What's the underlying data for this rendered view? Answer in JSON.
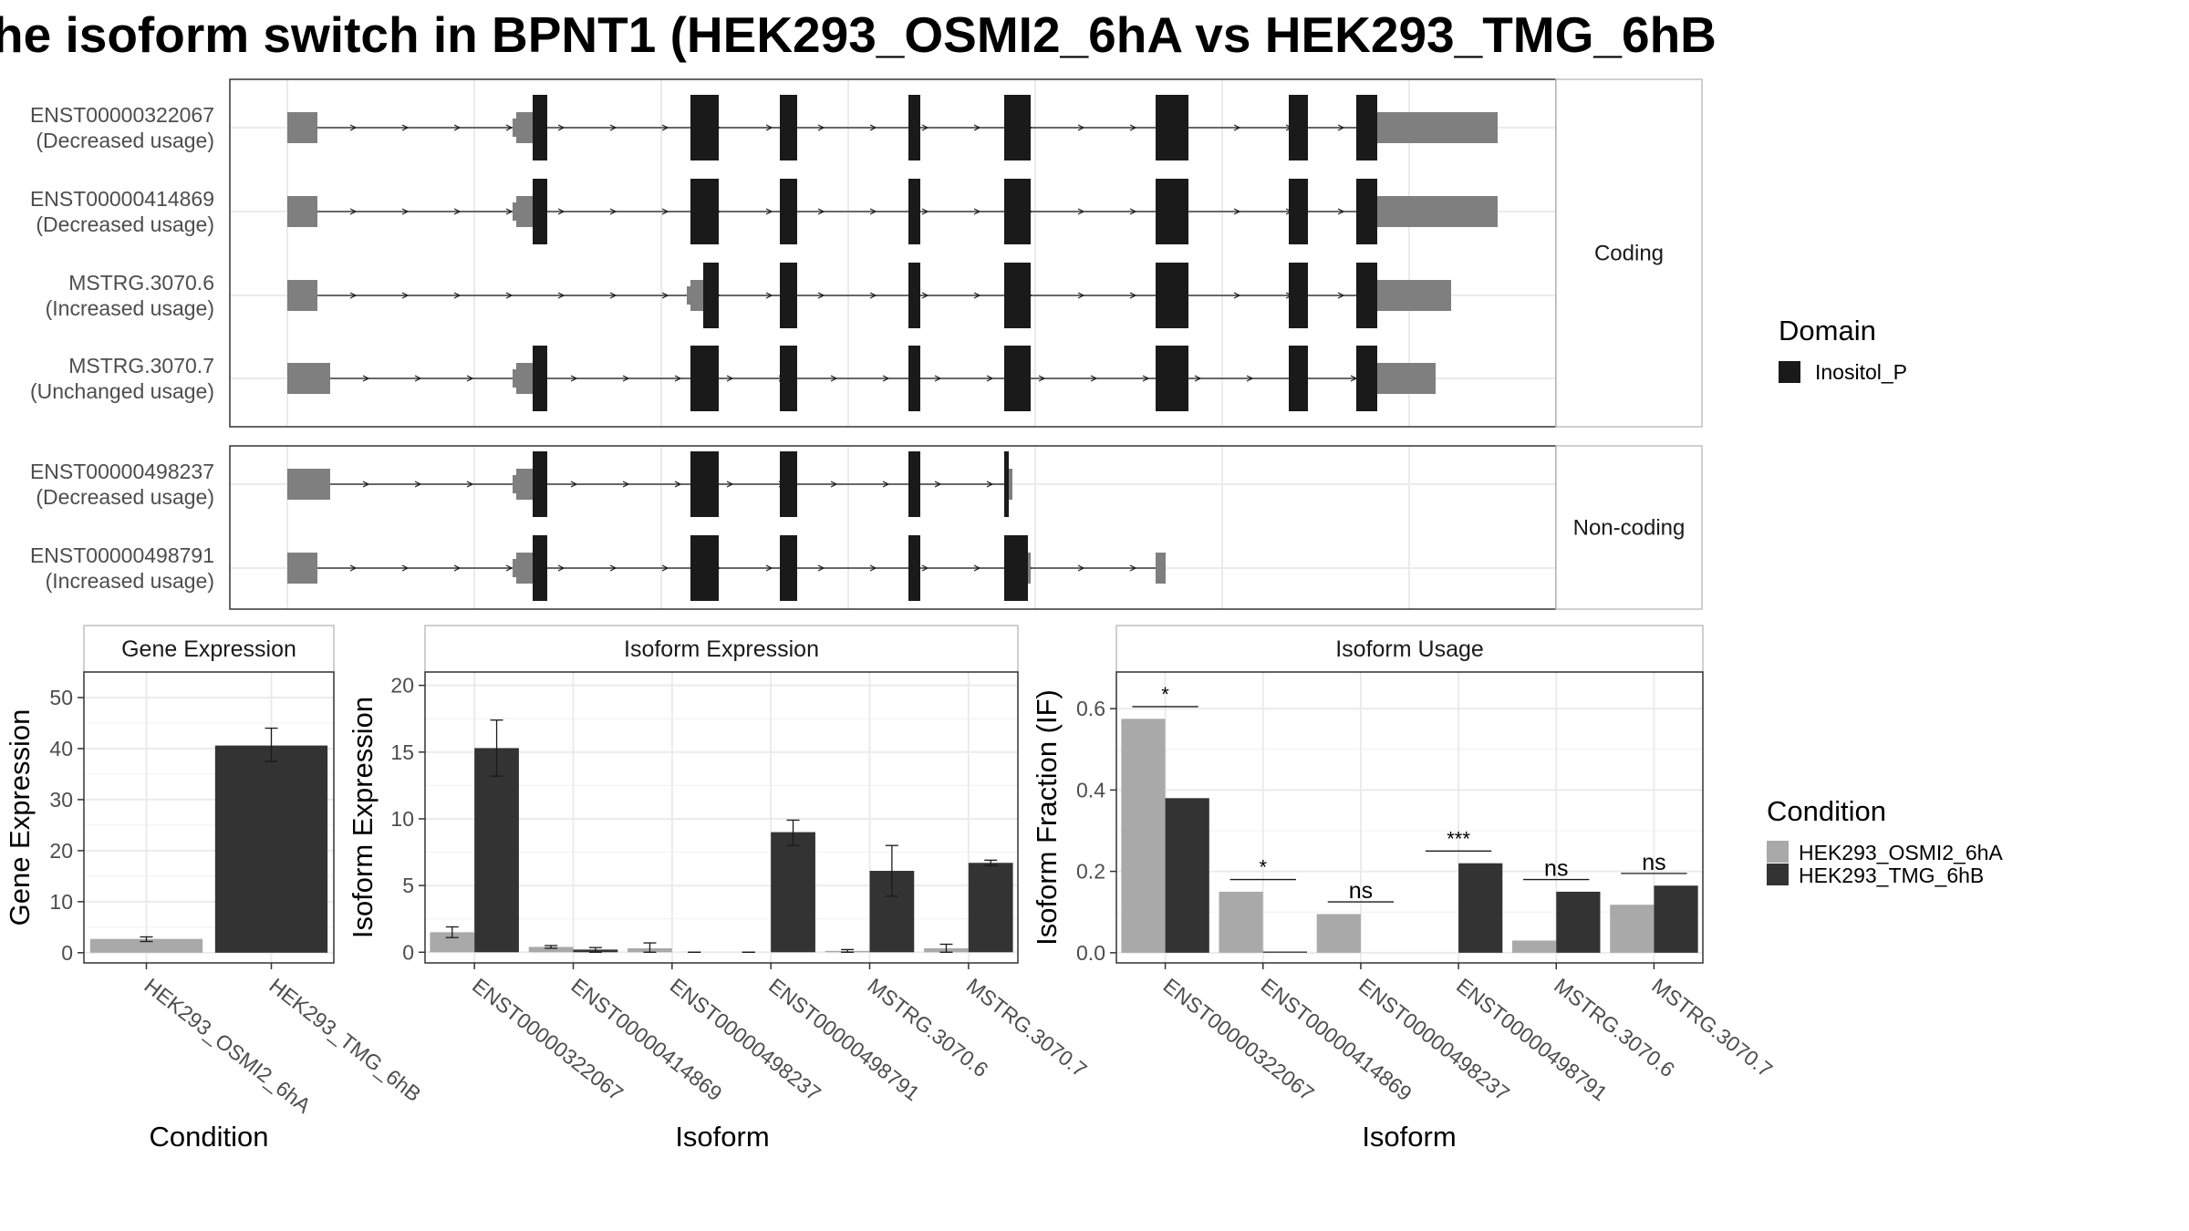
{
  "title": "he isoform switch in BPNT1 (HEK293_OSMI2_6hA vs HEK293_TMG_6hB",
  "colors": {
    "domain": "#1a1a1a",
    "utr": "#7f7f7f",
    "condition_a": "#a9a9a9",
    "condition_b": "#333333",
    "panel_border": "#333333",
    "strip_border": "#bfbfbf",
    "grid": "#ebebeb"
  },
  "legends": {
    "domain": {
      "title": "Domain",
      "items": [
        "Inositol_P"
      ]
    },
    "condition": {
      "title": "Condition",
      "items": [
        "HEK293_OSMI2_6hA",
        "HEK293_TMG_6hB"
      ]
    }
  },
  "transcripts": {
    "groups": [
      {
        "strip": "Coding",
        "tracks": [
          {
            "id": "ENST00000322067",
            "usage": "(Decreased usage)"
          },
          {
            "id": "ENST00000414869",
            "usage": "(Decreased usage)"
          },
          {
            "id": "MSTRG.3070.6",
            "usage": "(Increased usage)"
          },
          {
            "id": "MSTRG.3070.7",
            "usage": "(Unchanged usage)"
          }
        ]
      },
      {
        "strip": "Non-coding",
        "tracks": [
          {
            "id": "ENST00000498237",
            "usage": "(Decreased usage)"
          },
          {
            "id": "ENST00000498791",
            "usage": "(Increased usage)"
          }
        ]
      }
    ]
  },
  "chart_data": [
    {
      "type": "bar",
      "panel": "Gene Expression",
      "title": "Gene Expression",
      "xlabel": "Condition",
      "ylabel": "Gene Expression",
      "categories": [
        "HEK293_OSMI2_6hA",
        "HEK293_TMG_6hB"
      ],
      "values": [
        2.7,
        40.6
      ],
      "err_low": [
        2.2,
        37.5
      ],
      "err_high": [
        3.1,
        44.0
      ],
      "yticks": [
        0,
        10,
        20,
        30,
        40,
        50
      ],
      "ylim": [
        -2,
        55
      ],
      "grid": true
    },
    {
      "type": "bar",
      "panel": "Isoform Expression",
      "title": "Isoform Expression",
      "xlabel": "Isoform",
      "ylabel": "Isoform Expression",
      "categories": [
        "ENST00000322067",
        "ENST00000414869",
        "ENST00000498237",
        "ENST00000498791",
        "MSTRG.3070.6",
        "MSTRG.3070.7"
      ],
      "series": [
        {
          "name": "HEK293_OSMI2_6hA",
          "values": [
            1.5,
            0.4,
            0.3,
            0.0,
            0.1,
            0.3
          ],
          "err_low": [
            1.1,
            0.3,
            0.0,
            0.0,
            0.0,
            0.0
          ],
          "err_high": [
            1.9,
            0.5,
            0.7,
            0.0,
            0.2,
            0.6
          ]
        },
        {
          "name": "HEK293_TMG_6hB",
          "values": [
            15.3,
            0.2,
            0.0,
            9.0,
            6.1,
            6.7
          ],
          "err_low": [
            13.2,
            0.0,
            0.0,
            8.0,
            4.2,
            6.5
          ],
          "err_high": [
            17.4,
            0.35,
            0.0,
            9.9,
            8.0,
            6.9
          ]
        }
      ],
      "yticks": [
        0,
        5,
        10,
        15,
        20
      ],
      "ylim": [
        -0.8,
        21
      ],
      "grid": true
    },
    {
      "type": "bar",
      "panel": "Isoform Usage",
      "title": "Isoform Usage",
      "xlabel": "Isoform",
      "ylabel": "Isoform Fraction (IF)",
      "categories": [
        "ENST00000322067",
        "ENST00000414869",
        "ENST00000498237",
        "ENST00000498791",
        "MSTRG.3070.6",
        "MSTRG.3070.7"
      ],
      "series": [
        {
          "name": "HEK293_OSMI2_6hA",
          "values": [
            0.575,
            0.15,
            0.095,
            0.0,
            0.03,
            0.118
          ]
        },
        {
          "name": "HEK293_TMG_6hB",
          "values": [
            0.38,
            0.003,
            0.0,
            0.22,
            0.15,
            0.165
          ]
        }
      ],
      "significance": [
        "*",
        "*",
        "ns",
        "***",
        "ns",
        "ns"
      ],
      "sig_y": [
        0.605,
        0.18,
        0.125,
        0.25,
        0.18,
        0.195
      ],
      "yticks": [
        0.0,
        0.2,
        0.4,
        0.6
      ],
      "ylim": [
        -0.025,
        0.69
      ],
      "grid": true
    }
  ]
}
